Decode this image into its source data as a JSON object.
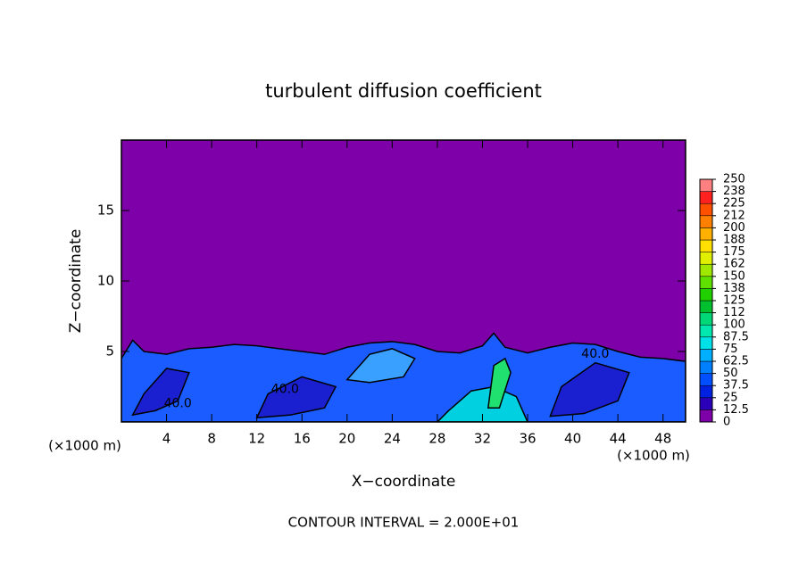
{
  "chart_data": {
    "type": "contour",
    "title": "turbulent diffusion coefficient",
    "xlabel": "X−coordinate",
    "ylabel": "Z−coordinate",
    "xunit": "(×1000 m)",
    "yunit": "(×1000 m)",
    "note": "CONTOUR INTERVAL = 2.000E+01",
    "xlim": [
      0,
      50
    ],
    "ylim": [
      0,
      20
    ],
    "xticks": [
      4,
      8,
      12,
      16,
      20,
      24,
      28,
      32,
      36,
      40,
      44,
      48
    ],
    "yticks": [
      5,
      10,
      15
    ],
    "colorbar": {
      "levels": [
        0,
        12.5,
        25,
        37.5,
        50,
        62.5,
        75,
        87.5,
        100,
        {
          "value": 112.5,
          "label": "112"
        },
        125,
        {
          "value": 137.5,
          "label": "138"
        },
        150,
        {
          "value": 162.5,
          "label": "162"
        },
        175,
        {
          "value": 187.5,
          "label": "188"
        },
        200,
        {
          "value": 212.5,
          "label": "212"
        },
        225,
        {
          "value": 237.5,
          "label": "238"
        },
        250
      ],
      "colors": [
        "#7d00a8",
        "#2a00b8",
        "#0022e0",
        "#0050ff",
        "#0080ff",
        "#00b0ff",
        "#00e0e8",
        "#00e8b0",
        "#00d878",
        "#00c030",
        "#20d000",
        "#60e000",
        "#a0e800",
        "#e0f000",
        "#ffe000",
        "#ffb000",
        "#ff8000",
        "#ff5000",
        "#ff2020",
        "#ff8080"
      ]
    },
    "regions": [
      {
        "color": "#1a5cff",
        "x": [
          0,
          0,
          1,
          2,
          4,
          6,
          8,
          10,
          12,
          14,
          16,
          18,
          20,
          22,
          24,
          26,
          28,
          30,
          32,
          33,
          34,
          36,
          38,
          40,
          42,
          44,
          46,
          48,
          50,
          50
        ],
        "z": [
          0,
          4.5,
          5.8,
          5.0,
          4.8,
          5.2,
          5.3,
          5.5,
          5.4,
          5.2,
          5.0,
          4.8,
          5.3,
          5.6,
          5.7,
          5.5,
          5.0,
          4.9,
          5.4,
          6.3,
          5.3,
          4.9,
          5.3,
          5.6,
          5.5,
          5.0,
          4.6,
          4.5,
          4.3,
          0
        ]
      },
      {
        "color": "#1a20d0",
        "x": [
          1,
          3,
          5,
          6,
          4,
          2
        ],
        "z": [
          0.5,
          0.8,
          1.5,
          3.5,
          3.8,
          2.0
        ]
      },
      {
        "color": "#1a20d0",
        "x": [
          12,
          15,
          18,
          19,
          16,
          13
        ],
        "z": [
          0.3,
          0.5,
          1.0,
          2.5,
          3.2,
          2.0
        ]
      },
      {
        "color": "#1a20d0",
        "x": [
          38,
          41,
          44,
          45,
          42,
          39
        ],
        "z": [
          0.4,
          0.6,
          1.5,
          3.5,
          4.2,
          2.5
        ]
      },
      {
        "color": "#3aa0ff",
        "x": [
          20,
          22,
          24,
          26,
          25,
          22
        ],
        "z": [
          3.0,
          4.8,
          5.2,
          4.5,
          3.2,
          2.8
        ]
      },
      {
        "color": "#00d0e0",
        "x": [
          28,
          30,
          32,
          34,
          36,
          35,
          33,
          31,
          29
        ],
        "z": [
          0,
          0,
          0,
          0,
          0,
          1.8,
          2.5,
          2.2,
          0.8
        ]
      },
      {
        "color": "#20e070",
        "x": [
          32.5,
          33.5,
          34.5,
          34,
          33
        ],
        "z": [
          1.0,
          1.0,
          3.5,
          4.5,
          4.0
        ]
      }
    ],
    "contour_labels": [
      {
        "text": "40.0",
        "x": 5,
        "z": 1.3
      },
      {
        "text": "40.0",
        "x": 14.5,
        "z": 2.3
      },
      {
        "text": "40.0",
        "x": 42,
        "z": 4.8
      }
    ]
  }
}
